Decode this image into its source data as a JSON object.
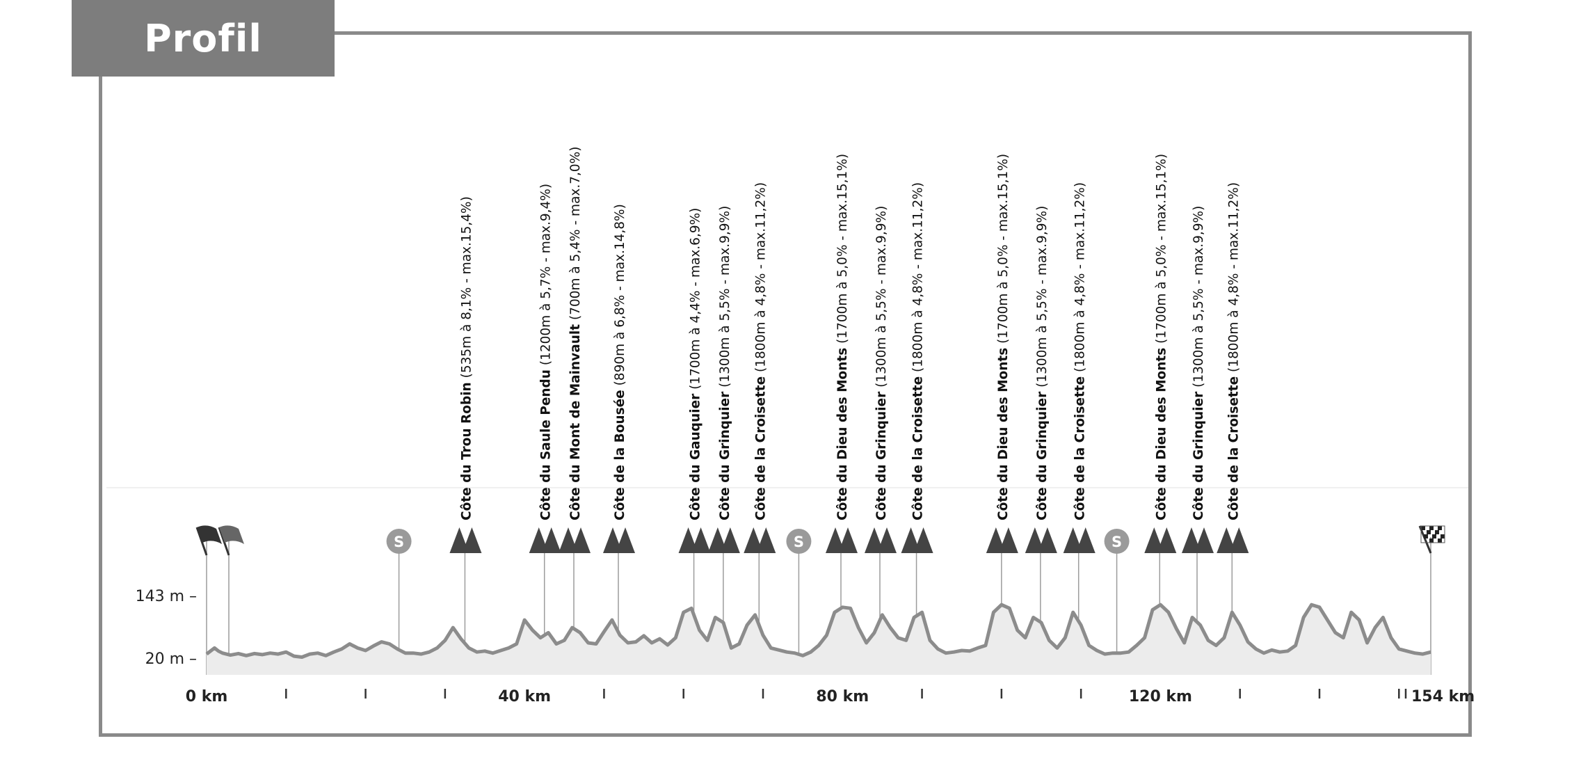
{
  "header": {
    "title": "Profil"
  },
  "colors": {
    "frame": "#8a8a8a",
    "tab": "#7d7d7d",
    "profile_line": "#8c8c8c",
    "profile_fill": "#ececec",
    "climb_icon": "#444444",
    "sprint_icon": "#9a9a9a"
  },
  "chart_data": {
    "type": "area",
    "title": "",
    "xlabel": "",
    "ylabel": "",
    "xlim": [
      0,
      154
    ],
    "ylim": [
      20,
      143
    ],
    "y_ticks": [
      {
        "value": 143,
        "label": "143 m –"
      },
      {
        "value": 20,
        "label": "20 m –"
      }
    ],
    "x_tick_labels": [
      {
        "km": 0,
        "label": "0 km"
      },
      {
        "km": 40,
        "label": "40 km"
      },
      {
        "km": 80,
        "label": "80 km"
      },
      {
        "km": 120,
        "label": "120 km"
      },
      {
        "km": 154,
        "label": "154 km"
      }
    ],
    "x_minor_ticks": [
      10,
      20,
      30,
      50,
      60,
      70,
      90,
      100,
      110,
      130,
      140,
      150
    ],
    "series": [
      {
        "x": [
          0,
          1,
          1.5,
          2,
          3,
          4,
          5,
          6,
          7,
          8,
          9,
          10,
          11,
          12,
          13,
          14,
          15,
          16,
          17,
          18,
          19,
          20,
          21,
          22,
          23,
          24,
          25,
          26,
          27,
          28,
          29,
          30,
          31,
          32,
          33,
          34,
          35,
          36,
          37,
          38,
          39,
          40,
          41,
          42,
          43,
          44,
          45,
          46,
          47,
          48,
          49,
          50,
          51,
          52,
          53,
          54,
          55,
          56,
          57,
          58,
          59,
          60,
          61,
          62,
          63,
          64,
          65,
          66,
          67,
          68,
          69,
          70,
          71,
          72,
          73,
          74,
          75,
          76,
          77,
          78,
          79,
          80,
          81,
          82,
          83,
          84,
          85,
          86,
          87,
          88,
          89,
          90,
          91,
          92,
          93,
          94,
          95,
          96,
          97,
          98,
          99,
          100,
          101,
          102,
          103,
          104,
          105,
          106,
          107,
          108,
          109,
          110,
          111,
          112,
          113,
          114,
          115,
          116,
          117,
          118,
          119,
          120,
          121,
          122,
          123,
          124,
          125,
          126,
          127,
          128,
          129,
          130,
          131,
          132,
          133,
          134,
          135,
          136,
          137,
          138,
          139,
          140,
          141,
          142,
          143,
          144,
          145,
          146,
          147,
          148,
          149,
          150,
          151,
          152,
          153,
          154
        ],
        "y": [
          28,
          40,
          34,
          30,
          26,
          29,
          25,
          29,
          27,
          30,
          28,
          32,
          24,
          22,
          28,
          30,
          25,
          32,
          38,
          48,
          40,
          35,
          44,
          52,
          48,
          38,
          30,
          30,
          28,
          32,
          40,
          55,
          80,
          58,
          40,
          32,
          34,
          30,
          35,
          40,
          48,
          95,
          75,
          60,
          70,
          48,
          55,
          80,
          70,
          50,
          48,
          72,
          95,
          65,
          50,
          52,
          64,
          50,
          58,
          46,
          60,
          110,
          118,
          75,
          55,
          100,
          90,
          40,
          48,
          85,
          105,
          65,
          40,
          36,
          32,
          30,
          25,
          32,
          45,
          65,
          110,
          120,
          118,
          80,
          50,
          70,
          105,
          80,
          60,
          55,
          100,
          110,
          55,
          38,
          30,
          32,
          35,
          34,
          40,
          45,
          110,
          125,
          118,
          75,
          60,
          100,
          90,
          55,
          40,
          60,
          110,
          85,
          45,
          35,
          28,
          30,
          30,
          32,
          45,
          60,
          115,
          125,
          110,
          78,
          50,
          100,
          85,
          55,
          45,
          60,
          110,
          85,
          52,
          38,
          30,
          36,
          32,
          34,
          45,
          100,
          125,
          120,
          95,
          70,
          60,
          110,
          95,
          50,
          80,
          100,
          60,
          38,
          34,
          30,
          28,
          32
        ]
      }
    ],
    "climbs": [
      {
        "km": 32.5,
        "name": "Côte du Trou Robin",
        "detail": "(535m à 8,1% - max.15,4%)"
      },
      {
        "km": 42.5,
        "name": "Côte du Saule Pendu",
        "detail": "(1200m à 5,7% - max.9,4%)"
      },
      {
        "km": 46.2,
        "name": "Côte du Mont de Mainvault",
        "detail": "(700m à 5,4% - max.7,0%)"
      },
      {
        "km": 51.8,
        "name": "Côte de la Bousée",
        "detail": "(890m à 6,8% - max.14,8%)"
      },
      {
        "km": 61.3,
        "name": "Côte du Gauquier",
        "detail": "(1700m à 4,4% - max.6,9%)"
      },
      {
        "km": 65.0,
        "name": "Côte du Grinquier",
        "detail": "(1300m à 5,5% - max.9,9%)"
      },
      {
        "km": 69.5,
        "name": "Côte de la Croisette",
        "detail": "(1800m à 4,8% - max.11,2%)"
      },
      {
        "km": 79.8,
        "name": "Côte du Dieu des Monts",
        "detail": "(1700m à 5,0% - max.15,1%)"
      },
      {
        "km": 84.7,
        "name": "Côte du Grinquier",
        "detail": "(1300m à 5,5% - max.9,9%)"
      },
      {
        "km": 89.3,
        "name": "Côte de la Croisette",
        "detail": "(1800m à 4,8% - max.11,2%)"
      },
      {
        "km": 100.0,
        "name": "Côte du Dieu des Monts",
        "detail": "(1700m à 5,0% - max.15,1%)"
      },
      {
        "km": 104.9,
        "name": "Côte du Grinquier",
        "detail": "(1300m à 5,5% - max.9,9%)"
      },
      {
        "km": 109.7,
        "name": "Côte de la Croisette",
        "detail": "(1800m à 4,8% - max.11,2%)"
      },
      {
        "km": 119.9,
        "name": "Côte du Dieu des Monts",
        "detail": "(1700m à 5,0% - max.15,1%)"
      },
      {
        "km": 124.6,
        "name": "Côte du Grinquier",
        "detail": "(1300m à 5,5% - max.9,9%)"
      },
      {
        "km": 129.0,
        "name": "Côte de la Croisette",
        "detail": "(1800m à 4,8% - max.11,2%)"
      }
    ],
    "sprints": [
      {
        "km": 24.2,
        "label": "S"
      },
      {
        "km": 74.5,
        "label": "S"
      },
      {
        "km": 114.5,
        "label": "S"
      }
    ],
    "start_markers_km": [
      0,
      2.8
    ],
    "finish_km": 154
  }
}
